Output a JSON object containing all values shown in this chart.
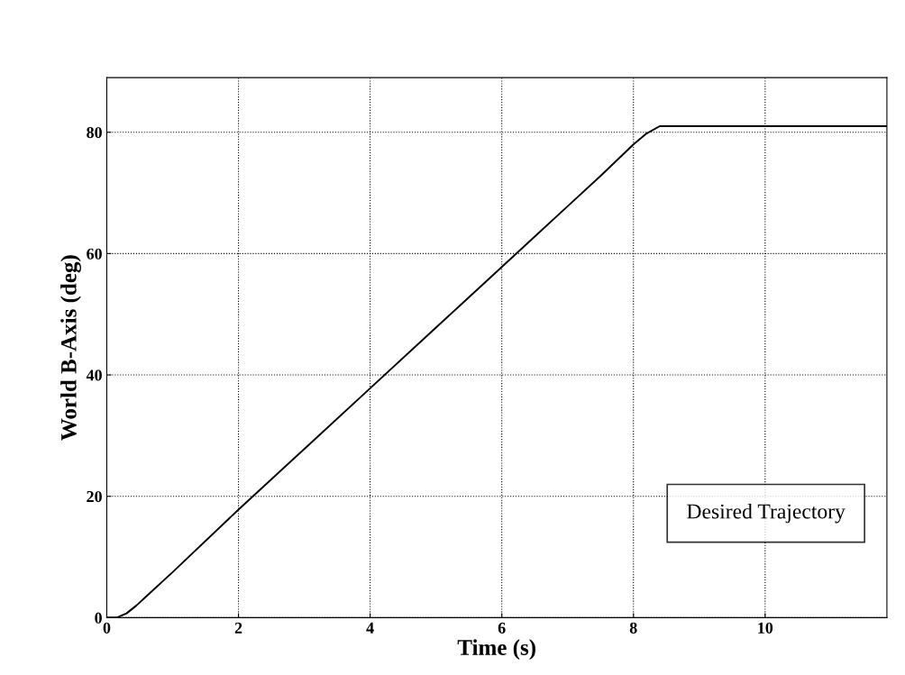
{
  "chart_data": {
    "type": "line",
    "xlabel": "Time (s)",
    "ylabel": "World B-Axis (deg)",
    "xlim": [
      0,
      11.85
    ],
    "ylim": [
      0,
      89
    ],
    "xticks": [
      0,
      2,
      4,
      6,
      8,
      10
    ],
    "yticks": [
      0,
      20,
      40,
      60,
      80
    ],
    "grid": true,
    "legend": "bottom right",
    "line_style": "solid",
    "marker": "none",
    "series": [
      {
        "name": "Desired Trajectory",
        "color": "#000000",
        "x": [
          0,
          0.15,
          0.3,
          0.45,
          0.6,
          1,
          2,
          3,
          4,
          5,
          6,
          7,
          7.5,
          8,
          8.2,
          8.4,
          9,
          10,
          11,
          11.85
        ],
        "values": [
          0,
          0,
          0.7,
          2,
          3.5,
          7.5,
          17.8,
          27.8,
          37.8,
          47.8,
          57.8,
          67.8,
          72.8,
          78,
          79.8,
          81,
          81,
          81,
          81,
          81
        ]
      }
    ]
  }
}
